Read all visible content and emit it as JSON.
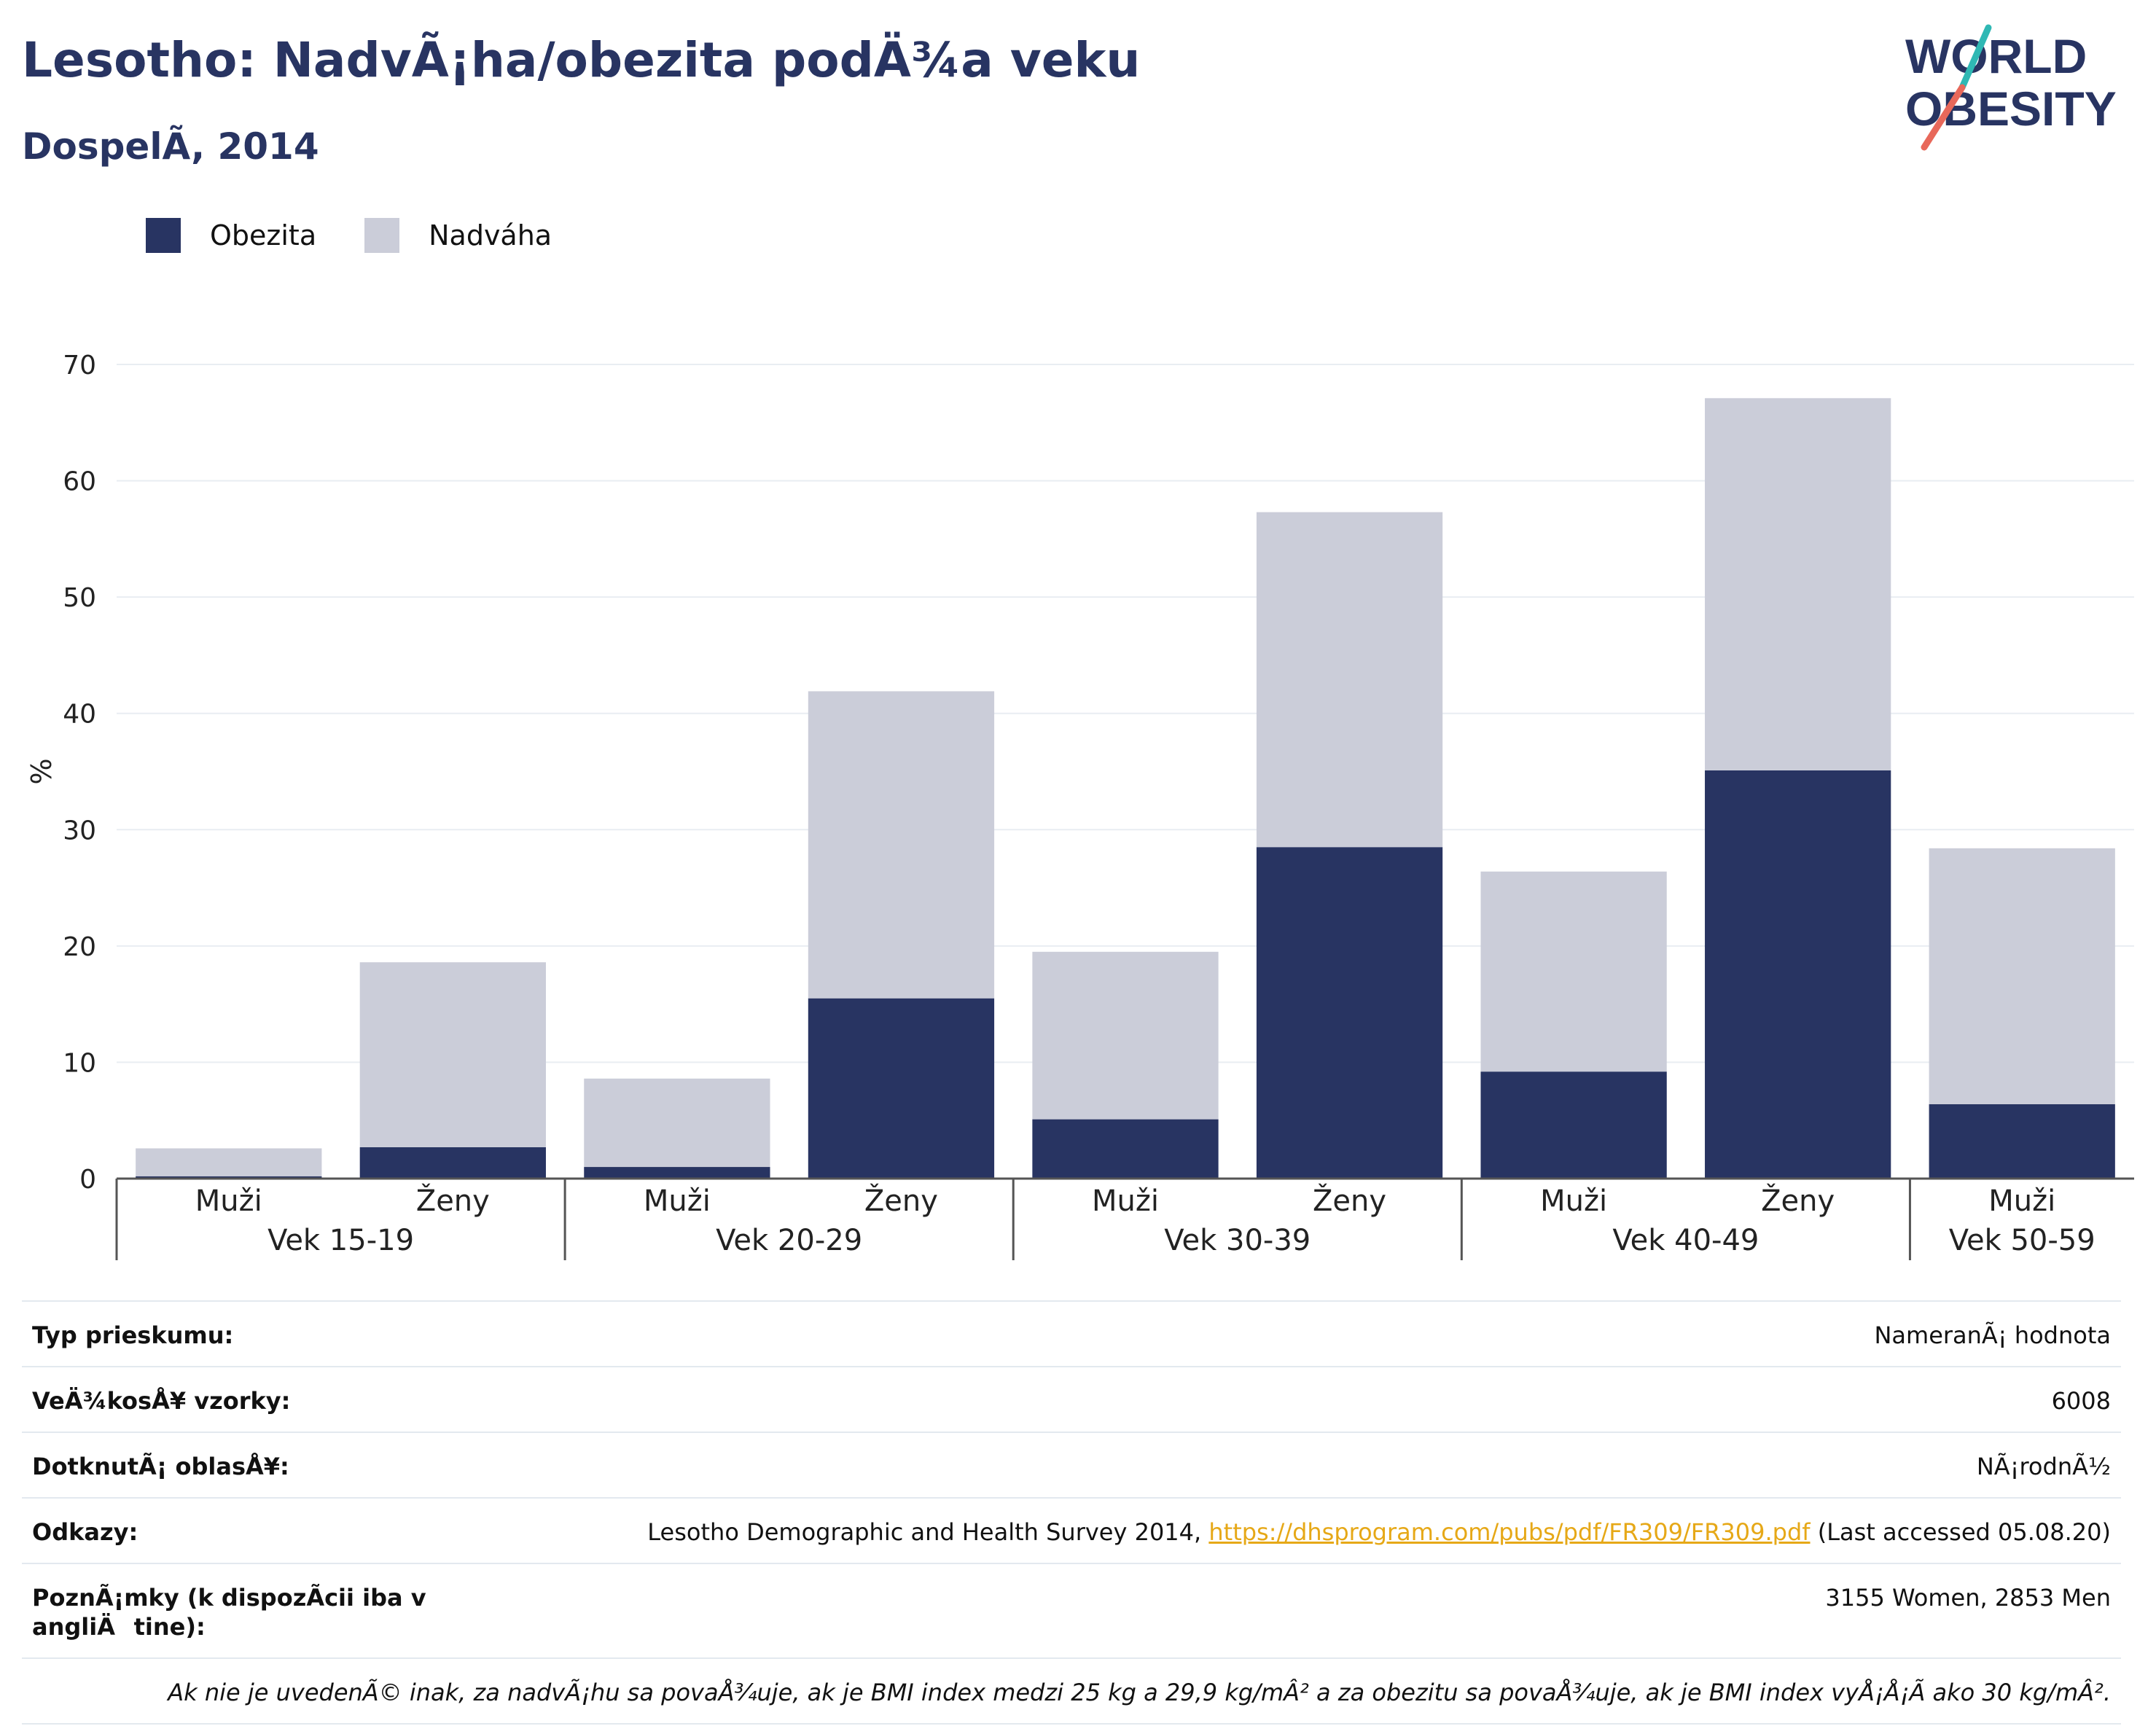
{
  "header": {
    "title": "Lesotho: NadvÃ¡ha/obezita podÄ¾a veku",
    "subtitle": "DospelÃ, 2014"
  },
  "logo": {
    "line1": "WORLD",
    "line2": "OBESITY"
  },
  "colors": {
    "obesity": "#283462",
    "overweight": "#cbcdd9",
    "title": "#283462",
    "link": "#e6a817"
  },
  "chart_data": {
    "type": "bar",
    "stacked": true,
    "ylabel": "%",
    "ylim": [
      0,
      70
    ],
    "yticks": [
      0,
      10,
      20,
      30,
      40,
      50,
      60,
      70
    ],
    "grid": true,
    "legend_position": "top-left",
    "groups": [
      "Vek 15-19",
      "Vek 20-29",
      "Vek 30-39",
      "Vek 40-49",
      "Vek 50-59"
    ],
    "categories": [
      "Muži",
      "Ženy",
      "Muži",
      "Ženy",
      "Muži",
      "Ženy",
      "Muži",
      "Ženy",
      "Muži"
    ],
    "category_group": [
      0,
      0,
      1,
      1,
      2,
      2,
      3,
      3,
      4
    ],
    "series": [
      {
        "name": "Obezita",
        "values": [
          0.2,
          2.7,
          1.0,
          15.5,
          5.1,
          28.5,
          9.2,
          35.1,
          6.4
        ]
      },
      {
        "name": "Nadváha",
        "values": [
          2.4,
          15.9,
          7.6,
          26.4,
          14.4,
          28.8,
          17.2,
          32.0,
          22.0
        ]
      }
    ]
  },
  "info": {
    "survey_type": {
      "label": "Typ prieskumu:",
      "value": "NameranÃ¡ hodnota"
    },
    "sample_size": {
      "label": "VeÄ¾kosÅ¥ vzorky:",
      "value": "6008"
    },
    "area": {
      "label": "DotknutÃ¡ oblasÅ¥:",
      "value": "NÃ¡rodnÃ½"
    },
    "references": {
      "label": "Odkazy:",
      "text_before": "Lesotho Demographic and Health Survey 2014, ",
      "link": "https://dhsprogram.com/pubs/pdf/FR309/FR309.pdf",
      "text_after": " (Last accessed 05.08.20)"
    },
    "notes": {
      "label": "PoznÃ¡mky (k dispozÃcii iba v angliÄtine):",
      "value": "3155 Women, 2853 Men"
    },
    "footnote": "Ak nie je uvedenÃ© inak, za nadvÃ¡hu sa povaÅ¾uje, ak je BMI index medzi 25 kg a 29,9 kg/mÂ² a za obezitu sa povaÅ¾uje, ak je BMI index vyÅ¡Å¡Ã ako 30 kg/mÂ²."
  }
}
